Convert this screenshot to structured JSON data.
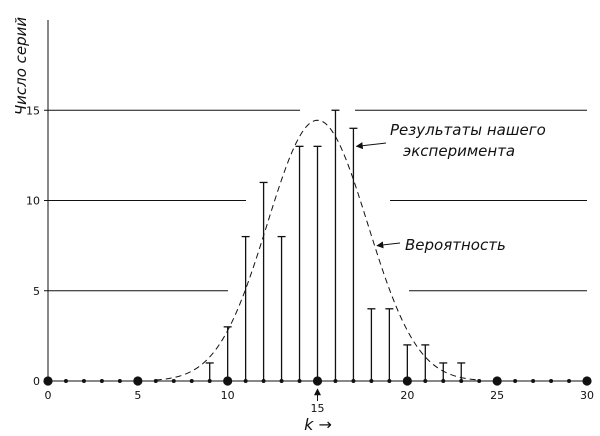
{
  "chart_data": {
    "type": "bar",
    "title": "",
    "xlabel": "k →",
    "ylabel": "Число серий",
    "xlim": [
      0,
      30
    ],
    "ylim": [
      0,
      20
    ],
    "grid": true,
    "x_ticks": [
      0,
      5,
      10,
      15,
      20,
      25,
      30
    ],
    "x_tick_labels": [
      "0",
      "5",
      "10",
      "15",
      "20",
      "25",
      "30"
    ],
    "y_ticks": [
      0,
      5,
      10,
      15
    ],
    "y_tick_labels": [
      "0",
      "5",
      "10",
      "15"
    ],
    "marked_x": 15,
    "series": [
      {
        "type": "stem",
        "x": [
          0,
          1,
          2,
          3,
          4,
          5,
          6,
          7,
          8,
          9,
          10,
          11,
          12,
          13,
          14,
          15,
          16,
          17,
          18,
          19,
          20,
          21,
          22,
          23,
          24,
          25,
          26,
          27,
          28,
          29,
          30
        ],
        "values": [
          0,
          0,
          0,
          0,
          0,
          0,
          0,
          0,
          0,
          1,
          3,
          8,
          11,
          8,
          13,
          13,
          15,
          14,
          4,
          4,
          2,
          2,
          1,
          1,
          0,
          0,
          0,
          0,
          0,
          0,
          0
        ]
      },
      {
        "type": "line",
        "style": "dashed",
        "distribution": "binomial",
        "n": 30,
        "p": 0.5,
        "total": 100
      }
    ],
    "annotations": [
      {
        "lines": [
          "Результаты нашего",
          "эксперимента"
        ],
        "points_to": {
          "x": 17,
          "y": 13
        }
      },
      {
        "lines": [
          "Вероятность"
        ],
        "points_to": {
          "x": 18.2,
          "y": 7.5
        }
      }
    ]
  }
}
